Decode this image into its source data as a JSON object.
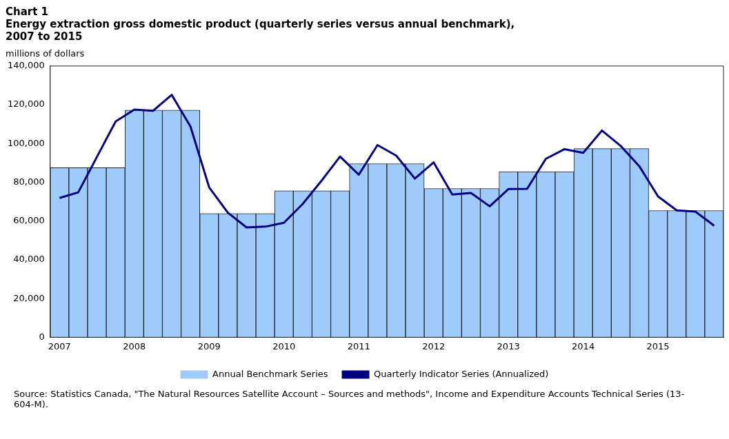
{
  "chart_data": {
    "type": "bar",
    "title": "Chart 1",
    "subtitle": "Energy extraction gross domestic product (quarterly series versus annual benchmark), 2007 to 2015",
    "ylabel": "millions of dollars",
    "categories": [
      "2007",
      null,
      null,
      null,
      "2008",
      null,
      null,
      null,
      "2009",
      null,
      null,
      null,
      "2010",
      null,
      null,
      null,
      "2011",
      null,
      null,
      null,
      "2012",
      null,
      null,
      null,
      "2013",
      null,
      null,
      null,
      "2014",
      null,
      null,
      null,
      "2015",
      null,
      null,
      null
    ],
    "series": [
      {
        "name": "Annual Benchmark Series",
        "color": "#9ecbfa",
        "values": [
          87500,
          87500,
          87500,
          87500,
          117200,
          117200,
          117200,
          117200,
          63900,
          63900,
          63900,
          63900,
          75600,
          75600,
          75600,
          75600,
          89600,
          89600,
          89600,
          89600,
          76800,
          76800,
          76800,
          76800,
          85500,
          85500,
          85500,
          85500,
          97400,
          97400,
          97400,
          97400,
          65400,
          65400,
          65400,
          65400
        ]
      },
      {
        "name": "Quarterly Indicator Series (Annualized)",
        "type": "line",
        "color": "#000080",
        "values": [
          71900,
          74800,
          93100,
          111400,
          117500,
          116900,
          125100,
          108800,
          77400,
          64300,
          56700,
          57100,
          59100,
          68800,
          80700,
          93300,
          83900,
          99200,
          93800,
          81900,
          90300,
          73700,
          74500,
          67600,
          76500,
          76600,
          92100,
          97100,
          95200,
          106700,
          98800,
          88300,
          72700,
          65500,
          64900,
          57600
        ]
      }
    ],
    "ylim": [
      0,
      140000
    ],
    "yticks": [
      {
        "value": 0,
        "label": "0"
      },
      {
        "value": 20000,
        "label": "20,000"
      },
      {
        "value": 40000,
        "label": "40,000"
      },
      {
        "value": 60000,
        "label": "60,000"
      },
      {
        "value": 80000,
        "label": "80,000"
      },
      {
        "value": 100000,
        "label": "100,000"
      },
      {
        "value": 120000,
        "label": "120,000"
      },
      {
        "value": 140000,
        "label": "140,000"
      }
    ],
    "grid": false,
    "legend": "bottom",
    "marker": "none",
    "line_style": "solid",
    "annotations": [
      "Source: Statistics Canada, \"The Natural Resources Satellite Account – Sources and methods\", Income and Expenditure Accounts Technical Series (13-604-M)."
    ]
  }
}
